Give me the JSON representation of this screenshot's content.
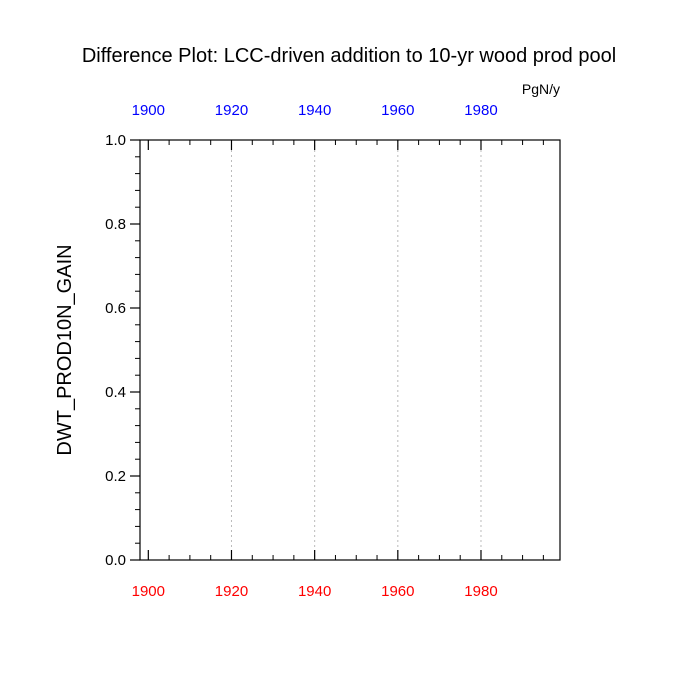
{
  "chart_data": {
    "type": "line",
    "title": "Difference Plot: LCC-driven addition to 10-yr wood prod pool",
    "units": "PgN/y",
    "ylabel": "DWT_PROD10N_GAIN",
    "xlabel": "",
    "xlim": [
      1898,
      1999
    ],
    "ylim": [
      0.0,
      1.0
    ],
    "y_ticks": [
      "0.0",
      "0.2",
      "0.4",
      "0.6",
      "0.8",
      "1.0"
    ],
    "y_tick_values": [
      0.0,
      0.2,
      0.4,
      0.6,
      0.8,
      1.0
    ],
    "x_ticks_top": [
      "1900",
      "1920",
      "1940",
      "1960",
      "1980"
    ],
    "x_ticks_bottom": [
      "1900",
      "1920",
      "1940",
      "1960",
      "1980"
    ],
    "x_tick_values": [
      1900,
      1920,
      1940,
      1960,
      1980
    ],
    "x_axis_top_color": "#0000ff",
    "x_axis_bottom_color": "#ff0000",
    "vertical_gridlines": true,
    "series": []
  }
}
